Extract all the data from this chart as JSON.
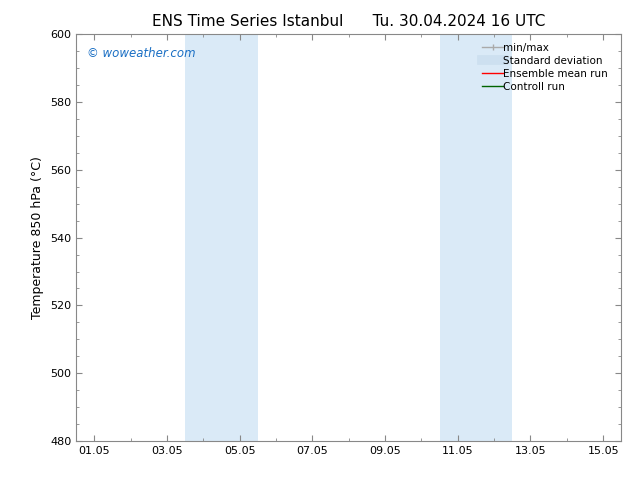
{
  "title_left": "ENS Time Series Istanbul",
  "title_right": "Tu. 30.04.2024 16 UTC",
  "ylabel": "Temperature 850 hPa (°C)",
  "ylim": [
    480,
    600
  ],
  "yticks": [
    480,
    500,
    520,
    540,
    560,
    580,
    600
  ],
  "xtick_labels": [
    "01.05",
    "03.05",
    "05.05",
    "07.05",
    "09.05",
    "11.05",
    "13.05",
    "15.05"
  ],
  "xtick_positions": [
    1,
    3,
    5,
    7,
    9,
    11,
    13,
    15
  ],
  "xlim": [
    0.5,
    15.5
  ],
  "shaded_bands": [
    {
      "x_start": 3.5,
      "x_end": 5.5
    },
    {
      "x_start": 10.5,
      "x_end": 12.5
    }
  ],
  "shaded_color": "#daeaf7",
  "watermark": "© woweather.com",
  "watermark_color": "#1a6fc4",
  "bg_color": "#ffffff",
  "legend_items": [
    {
      "label": "min/max",
      "color": "#aaaaaa",
      "lw": 1.0
    },
    {
      "label": "Standard deviation",
      "color": "#cde0f0",
      "lw": 7
    },
    {
      "label": "Ensemble mean run",
      "color": "#ff0000",
      "lw": 1.0
    },
    {
      "label": "Controll run",
      "color": "#006400",
      "lw": 1.0
    }
  ],
  "spine_color": "#888888",
  "title_fontsize": 11,
  "axis_label_fontsize": 9,
  "tick_fontsize": 8,
  "legend_fontsize": 7.5
}
